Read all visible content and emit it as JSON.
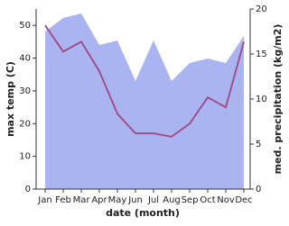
{
  "chart_data": {
    "type": "line",
    "x_label": "date (month)",
    "y_label": "max temp (C)",
    "y2_label": "med. precipitation (kg/m2)",
    "categories": [
      "Jan",
      "Feb",
      "Mar",
      "Apr",
      "May",
      "Jun",
      "Jul",
      "Aug",
      "Sep",
      "Oct",
      "Nov",
      "Dec"
    ],
    "series": [
      {
        "name": "med. precipitation (kg/m2)",
        "type": "area",
        "axis": "y2",
        "color": "#aab4f0",
        "values": [
          17.5,
          19,
          19.5,
          16,
          16.5,
          12,
          16.5,
          12,
          14,
          14.5,
          14,
          17
        ]
      },
      {
        "name": "max temp (C)",
        "type": "line",
        "color": "#a0508c",
        "values": [
          50,
          42,
          45,
          36,
          23,
          17,
          17,
          16,
          20,
          28,
          25,
          45
        ]
      }
    ],
    "ylim": [
      0,
      55
    ],
    "yticks": [
      0,
      10,
      20,
      30,
      40,
      50
    ],
    "y2lim": [
      0,
      20
    ],
    "y2ticks": [
      0,
      5,
      10,
      15,
      20
    ]
  }
}
